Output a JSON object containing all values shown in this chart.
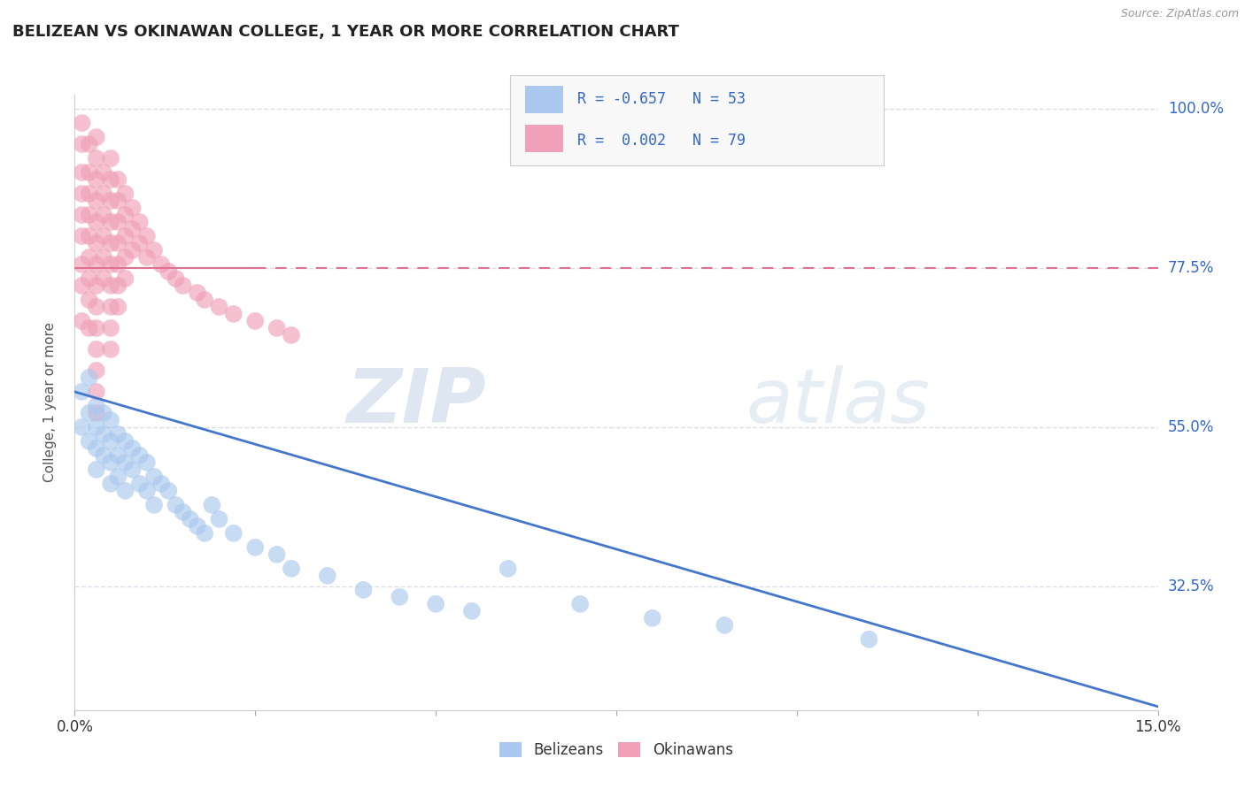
{
  "title": "BELIZEAN VS OKINAWAN COLLEGE, 1 YEAR OR MORE CORRELATION CHART",
  "source": "Source: ZipAtlas.com",
  "ylabel": "College, 1 year or more",
  "xlim": [
    0.0,
    0.15
  ],
  "ylim": [
    0.15,
    1.02
  ],
  "xticks": [
    0.0,
    0.025,
    0.05,
    0.075,
    0.1,
    0.125,
    0.15
  ],
  "xtick_labels": [
    "0.0%",
    "",
    "",
    "",
    "",
    "",
    "15.0%"
  ],
  "ytick_labels": [
    "100.0%",
    "77.5%",
    "55.0%",
    "32.5%"
  ],
  "ytick_vals": [
    1.0,
    0.775,
    0.55,
    0.325
  ],
  "belizean_color": "#aac8ee",
  "okinawan_color": "#f0a0b8",
  "belizean_line_color": "#4477cc",
  "okinawan_line_color": "#e07090",
  "watermark_color": "#dce8f0",
  "background_color": "#ffffff",
  "grid_color": "#d8dfe8",
  "title_fontsize": 13,
  "belizean_x": [
    0.001,
    0.001,
    0.002,
    0.002,
    0.002,
    0.003,
    0.003,
    0.003,
    0.003,
    0.004,
    0.004,
    0.004,
    0.005,
    0.005,
    0.005,
    0.005,
    0.006,
    0.006,
    0.006,
    0.007,
    0.007,
    0.007,
    0.008,
    0.008,
    0.009,
    0.009,
    0.01,
    0.01,
    0.011,
    0.011,
    0.012,
    0.013,
    0.014,
    0.015,
    0.016,
    0.017,
    0.018,
    0.019,
    0.02,
    0.022,
    0.025,
    0.028,
    0.03,
    0.035,
    0.04,
    0.045,
    0.05,
    0.055,
    0.06,
    0.07,
    0.08,
    0.09,
    0.11
  ],
  "belizean_y": [
    0.6,
    0.55,
    0.62,
    0.57,
    0.53,
    0.58,
    0.55,
    0.52,
    0.49,
    0.57,
    0.54,
    0.51,
    0.56,
    0.53,
    0.5,
    0.47,
    0.54,
    0.51,
    0.48,
    0.53,
    0.5,
    0.46,
    0.52,
    0.49,
    0.51,
    0.47,
    0.5,
    0.46,
    0.48,
    0.44,
    0.47,
    0.46,
    0.44,
    0.43,
    0.42,
    0.41,
    0.4,
    0.44,
    0.42,
    0.4,
    0.38,
    0.37,
    0.35,
    0.34,
    0.32,
    0.31,
    0.3,
    0.29,
    0.35,
    0.3,
    0.28,
    0.27,
    0.25
  ],
  "okinawan_x": [
    0.001,
    0.001,
    0.001,
    0.001,
    0.001,
    0.001,
    0.001,
    0.001,
    0.001,
    0.002,
    0.002,
    0.002,
    0.002,
    0.002,
    0.002,
    0.002,
    0.002,
    0.002,
    0.003,
    0.003,
    0.003,
    0.003,
    0.003,
    0.003,
    0.003,
    0.003,
    0.003,
    0.003,
    0.003,
    0.003,
    0.003,
    0.003,
    0.004,
    0.004,
    0.004,
    0.004,
    0.004,
    0.004,
    0.005,
    0.005,
    0.005,
    0.005,
    0.005,
    0.005,
    0.005,
    0.005,
    0.005,
    0.005,
    0.006,
    0.006,
    0.006,
    0.006,
    0.006,
    0.006,
    0.006,
    0.007,
    0.007,
    0.007,
    0.007,
    0.007,
    0.008,
    0.008,
    0.008,
    0.009,
    0.009,
    0.01,
    0.01,
    0.011,
    0.012,
    0.013,
    0.014,
    0.015,
    0.017,
    0.018,
    0.02,
    0.022,
    0.025,
    0.028,
    0.03
  ],
  "okinawan_y": [
    0.98,
    0.95,
    0.91,
    0.88,
    0.85,
    0.82,
    0.78,
    0.75,
    0.7,
    0.95,
    0.91,
    0.88,
    0.85,
    0.82,
    0.79,
    0.76,
    0.73,
    0.69,
    0.96,
    0.93,
    0.9,
    0.87,
    0.84,
    0.81,
    0.78,
    0.75,
    0.72,
    0.69,
    0.66,
    0.63,
    0.6,
    0.57,
    0.91,
    0.88,
    0.85,
    0.82,
    0.79,
    0.76,
    0.93,
    0.9,
    0.87,
    0.84,
    0.81,
    0.78,
    0.75,
    0.72,
    0.69,
    0.66,
    0.9,
    0.87,
    0.84,
    0.81,
    0.78,
    0.75,
    0.72,
    0.88,
    0.85,
    0.82,
    0.79,
    0.76,
    0.86,
    0.83,
    0.8,
    0.84,
    0.81,
    0.82,
    0.79,
    0.8,
    0.78,
    0.77,
    0.76,
    0.75,
    0.74,
    0.73,
    0.72,
    0.71,
    0.7,
    0.69,
    0.68
  ],
  "belizean_line_x0": 0.0,
  "belizean_line_y0": 0.6,
  "belizean_line_x1": 0.15,
  "belizean_line_y1": 0.155,
  "okinawan_line_x0": 0.0,
  "okinawan_line_y0": 0.775,
  "okinawan_line_x1": 0.15,
  "okinawan_line_y1": 0.775
}
